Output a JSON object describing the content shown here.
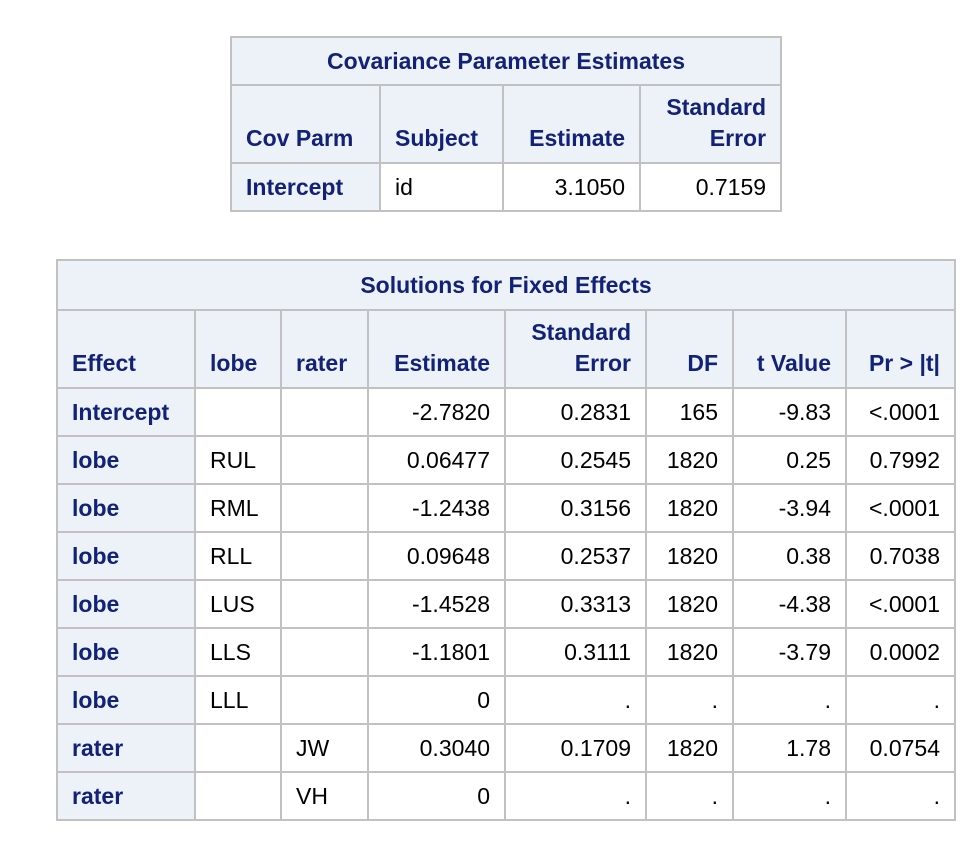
{
  "cov_params": {
    "title": "Covariance Parameter Estimates",
    "headers": {
      "cov_parm": "Cov Parm",
      "subject": "Subject",
      "estimate": "Estimate",
      "stderr_line1": "Standard",
      "stderr_line2": "Error"
    },
    "rows": [
      {
        "cov_parm": "Intercept",
        "subject": "id",
        "estimate": "3.1050",
        "stderr": "0.7159"
      }
    ]
  },
  "fixed_effects": {
    "title": "Solutions for Fixed Effects",
    "headers": {
      "effect": "Effect",
      "lobe": "lobe",
      "rater": "rater",
      "estimate": "Estimate",
      "stderr_line1": "Standard",
      "stderr_line2": "Error",
      "df": "DF",
      "tvalue": "t Value",
      "prob": "Pr > |t|"
    },
    "rows": [
      {
        "effect": "Intercept",
        "lobe": "",
        "rater": "",
        "estimate": "-2.7820",
        "stderr": "0.2831",
        "df": "165",
        "tvalue": "-9.83",
        "prob": "<.0001"
      },
      {
        "effect": "lobe",
        "lobe": "RUL",
        "rater": "",
        "estimate": "0.06477",
        "stderr": "0.2545",
        "df": "1820",
        "tvalue": "0.25",
        "prob": "0.7992"
      },
      {
        "effect": "lobe",
        "lobe": "RML",
        "rater": "",
        "estimate": "-1.2438",
        "stderr": "0.3156",
        "df": "1820",
        "tvalue": "-3.94",
        "prob": "<.0001"
      },
      {
        "effect": "lobe",
        "lobe": "RLL",
        "rater": "",
        "estimate": "0.09648",
        "stderr": "0.2537",
        "df": "1820",
        "tvalue": "0.38",
        "prob": "0.7038"
      },
      {
        "effect": "lobe",
        "lobe": "LUS",
        "rater": "",
        "estimate": "-1.4528",
        "stderr": "0.3313",
        "df": "1820",
        "tvalue": "-4.38",
        "prob": "<.0001"
      },
      {
        "effect": "lobe",
        "lobe": "LLS",
        "rater": "",
        "estimate": "-1.1801",
        "stderr": "0.3111",
        "df": "1820",
        "tvalue": "-3.79",
        "prob": "0.0002"
      },
      {
        "effect": "lobe",
        "lobe": "LLL",
        "rater": "",
        "estimate": "0",
        "stderr": ".",
        "df": ".",
        "tvalue": ".",
        "prob": "."
      },
      {
        "effect": "rater",
        "lobe": "",
        "rater": "JW",
        "estimate": "0.3040",
        "stderr": "0.1709",
        "df": "1820",
        "tvalue": "1.78",
        "prob": "0.0754"
      },
      {
        "effect": "rater",
        "lobe": "",
        "rater": "VH",
        "estimate": "0",
        "stderr": ".",
        "df": ".",
        "tvalue": ".",
        "prob": "."
      }
    ]
  },
  "colors": {
    "header_bg": "#edf2f9",
    "header_text": "#112277",
    "border": "#c1c1c1",
    "data_bg": "#ffffff",
    "data_text": "#000000"
  }
}
